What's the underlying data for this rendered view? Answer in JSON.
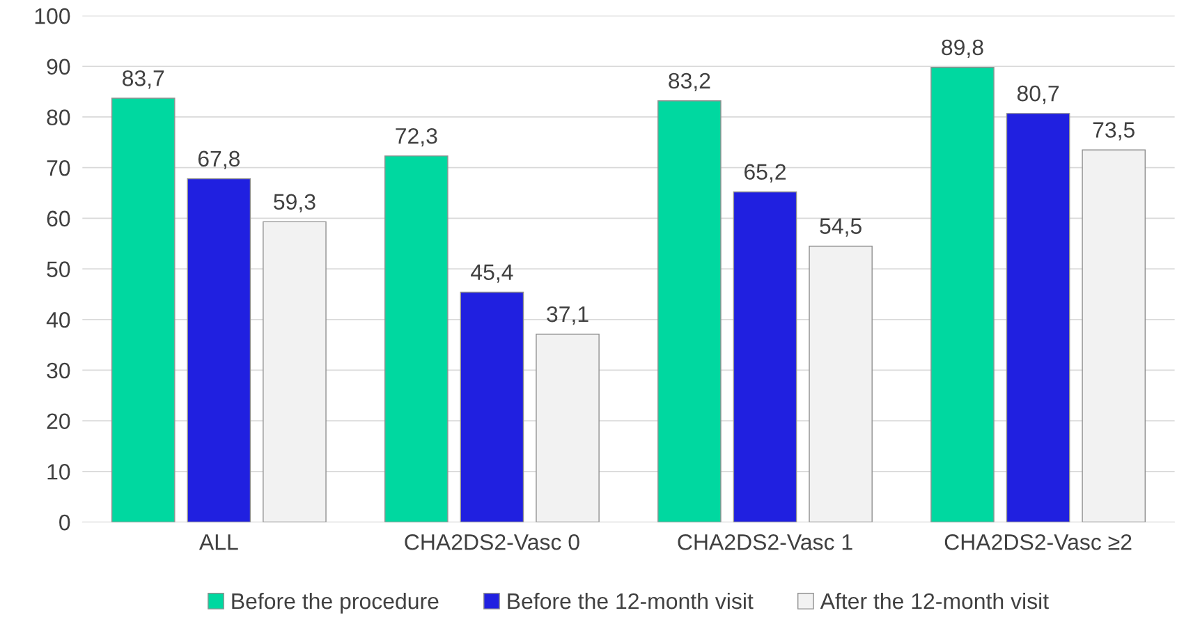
{
  "chart_data": {
    "type": "bar",
    "categories": [
      "ALL",
      "CHA2DS2-Vasc 0",
      "CHA2DS2-Vasc 1",
      "CHA2DS2-Vasc ≥2"
    ],
    "series": [
      {
        "name": "Before the procedure",
        "color": "#00d8a0",
        "values": [
          83.7,
          72.3,
          83.2,
          89.8
        ],
        "value_labels": [
          "83,7",
          "72,3",
          "83,2",
          "89,8"
        ]
      },
      {
        "name": "Before the 12-month visit",
        "color": "#2020e0",
        "values": [
          67.8,
          45.4,
          65.2,
          80.7
        ],
        "value_labels": [
          "67,8",
          "45,4",
          "65,2",
          "80,7"
        ]
      },
      {
        "name": "After the 12-month visit",
        "color": "#f2f2f2",
        "values": [
          59.3,
          37.1,
          54.5,
          73.5
        ],
        "value_labels": [
          "59,3",
          "37,1",
          "54,5",
          "73,5"
        ]
      }
    ],
    "ylim": [
      0,
      100
    ],
    "yticks": [
      0,
      10,
      20,
      30,
      40,
      50,
      60,
      70,
      80,
      90,
      100
    ],
    "grid": "y",
    "legend": "bottom"
  }
}
